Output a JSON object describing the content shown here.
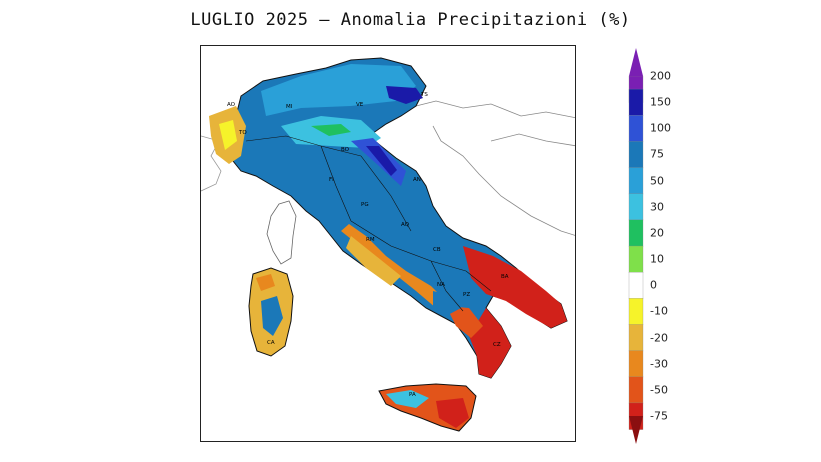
{
  "title": "LUGLIO 2025 – Anomalia Precipitazioni (%)",
  "legend": {
    "levels": [
      {
        "label": "200",
        "color": "#7a1fb3"
      },
      {
        "label": "150",
        "color": "#1a1aa8"
      },
      {
        "label": "100",
        "color": "#2f52d6"
      },
      {
        "label": "75",
        "color": "#1b78b8"
      },
      {
        "label": "50",
        "color": "#2aa0d8"
      },
      {
        "label": "30",
        "color": "#3cc1e0"
      },
      {
        "label": "20",
        "color": "#1fc060"
      },
      {
        "label": "10",
        "color": "#7fe04a"
      },
      {
        "label": "0",
        "color": "#ffffff"
      },
      {
        "label": "-10",
        "color": "#f6f32a"
      },
      {
        "label": "-20",
        "color": "#e7b43a"
      },
      {
        "label": "-30",
        "color": "#e8881e"
      },
      {
        "label": "-50",
        "color": "#e2541a"
      },
      {
        "label": "-75",
        "color": "#d1211a"
      }
    ],
    "max_arrow_color": "#7a1fb3",
    "min_arrow_color": "#8b0f10"
  },
  "region_labels": [
    "AO",
    "TO",
    "MI",
    "VE",
    "TS",
    "BO",
    "FI",
    "PG",
    "AN",
    "RM",
    "AQ",
    "CB",
    "NA",
    "PZ",
    "BA",
    "CZ",
    "PA",
    "CA"
  ]
}
